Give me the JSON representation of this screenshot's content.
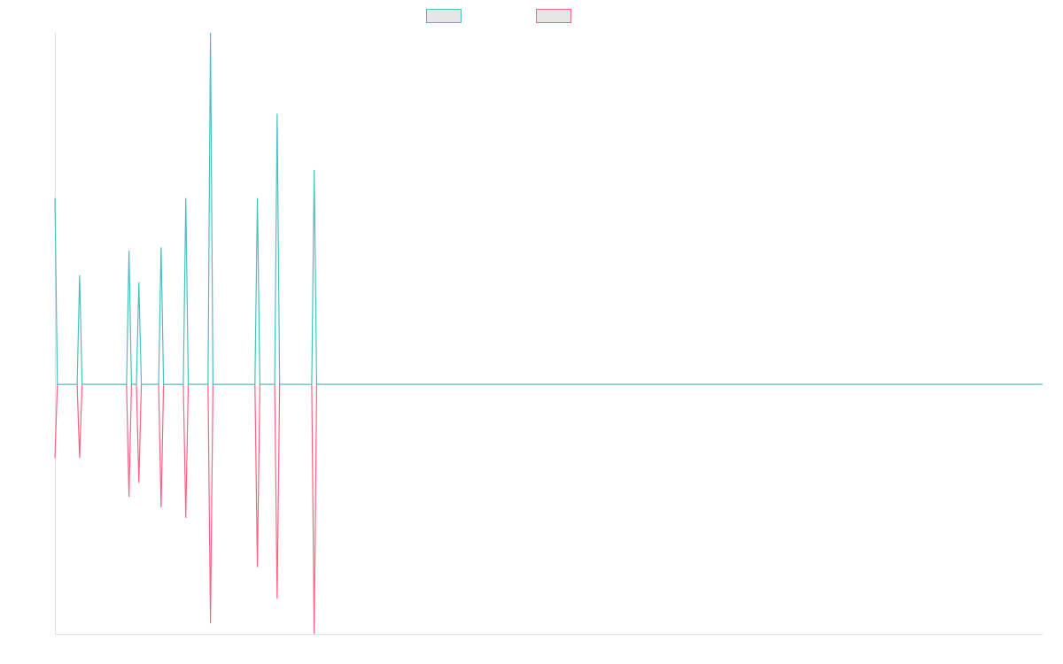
{
  "chart_data": {
    "type": "line",
    "x": [
      0,
      1,
      9,
      10,
      11,
      29,
      30,
      31,
      33,
      34,
      35,
      42,
      43,
      44,
      52,
      53,
      54,
      62,
      63,
      64,
      81,
      82,
      83,
      89,
      90,
      91,
      104,
      105,
      106,
      400
    ],
    "series": [
      {
        "color": "#4bc0c0",
        "values": [
          53,
          0,
          0,
          31,
          0,
          0,
          38,
          0,
          0,
          29,
          0,
          0,
          39,
          0,
          0,
          53,
          0,
          0,
          100,
          0,
          0,
          53,
          0,
          0,
          77,
          0,
          0,
          61,
          0,
          0
        ]
      },
      {
        "color": "#ff6384",
        "values": [
          -21,
          0,
          0,
          -21,
          0,
          0,
          -32,
          0,
          0,
          -28,
          0,
          0,
          -35,
          0,
          0,
          -38,
          0,
          0,
          -68,
          0,
          0,
          -52,
          0,
          0,
          -61,
          0,
          0,
          -71,
          0,
          0
        ]
      }
    ],
    "xlim": [
      0,
      400
    ],
    "ylim": [
      -71,
      100
    ]
  }
}
